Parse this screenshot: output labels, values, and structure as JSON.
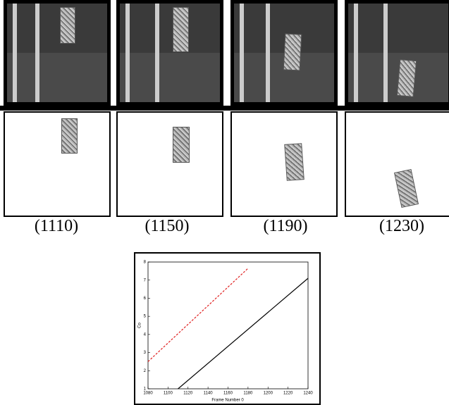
{
  "figure": {
    "panels": [
      {
        "label": "(1110)"
      },
      {
        "label": "(1150)"
      },
      {
        "label": "(1190)"
      },
      {
        "label": "(1230)"
      }
    ]
  },
  "chart_data": {
    "type": "line",
    "xlabel": "Frame Number 0",
    "ylabel": "Co",
    "xlim": [
      1080,
      1240
    ],
    "xticks": [
      1080,
      1100,
      1120,
      1140,
      1160,
      1180,
      1200,
      1220,
      1240
    ],
    "ylim": [
      1,
      8
    ],
    "yticks": [
      1,
      2,
      3,
      4,
      5,
      6,
      7,
      8
    ],
    "series": [
      {
        "color": "#000000",
        "style": "solid",
        "x": [
          1110,
          1240
        ],
        "values": [
          1,
          7.1
        ]
      },
      {
        "color": "#e02020",
        "style": "dashed",
        "x": [
          1080,
          1180
        ],
        "values": [
          2.5,
          7.65
        ]
      }
    ]
  }
}
